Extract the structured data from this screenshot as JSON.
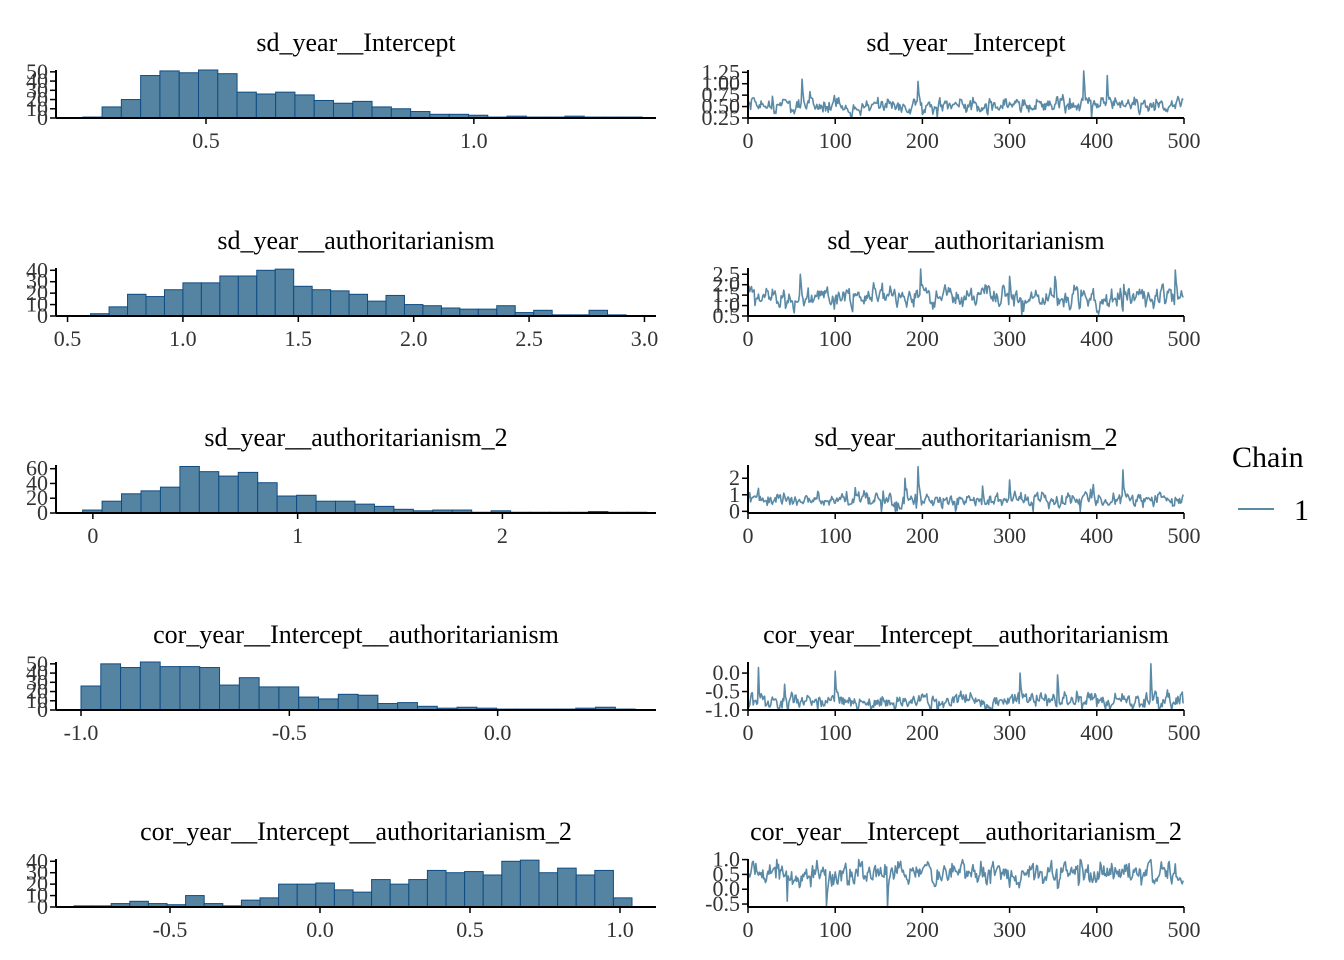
{
  "colors": {
    "bar_fill": "#5584a2",
    "bar_stroke": "#0f4c84",
    "trace": "#5b8aa6",
    "axis": "#000000"
  },
  "legend": {
    "title": "Chain",
    "items": [
      {
        "label": "1"
      }
    ]
  },
  "chart_data": [
    {
      "type": "bar",
      "title": "sd_year__Intercept",
      "xlim": [
        0.22,
        1.34
      ],
      "xticks": [
        0.5,
        1.0
      ],
      "xtick_labels": [
        "0.5",
        "1.0"
      ],
      "ylim": [
        0,
        52
      ],
      "yticks": [
        0,
        10,
        20,
        30,
        40,
        50
      ],
      "ytick_labels": [
        "0",
        "10",
        "20",
        "30",
        "40",
        "50"
      ],
      "bin_width": 0.036,
      "bin_starts": [
        0.27,
        0.306,
        0.342,
        0.378,
        0.414,
        0.45,
        0.486,
        0.522,
        0.558,
        0.594,
        0.63,
        0.666,
        0.702,
        0.738,
        0.774,
        0.81,
        0.846,
        0.882,
        0.918,
        0.954,
        0.99,
        1.026,
        1.062,
        1.098,
        1.134,
        1.17,
        1.206,
        1.242,
        1.278
      ],
      "counts": [
        1,
        12,
        20,
        46,
        51,
        49,
        52,
        48,
        28,
        26,
        28,
        25,
        19,
        16,
        18,
        12,
        10,
        7,
        4,
        4,
        3,
        1,
        2,
        1,
        1,
        2,
        1,
        1,
        1
      ]
    },
    {
      "type": "line",
      "title": "sd_year__Intercept",
      "n": 500,
      "xlim": [
        0,
        500
      ],
      "xticks": [
        0,
        100,
        200,
        300,
        400,
        500
      ],
      "xtick_labels": [
        "0",
        "100",
        "200",
        "300",
        "400",
        "500"
      ],
      "ylim": [
        0.25,
        1.3
      ],
      "yticks": [
        0.25,
        0.5,
        0.75,
        1.0,
        1.25
      ],
      "ytick_labels": [
        "0.25",
        "0.50",
        "0.75",
        "1.00",
        "1.25"
      ],
      "trace_summary": {
        "center": 0.52,
        "spread": 0.13,
        "min": 0.27,
        "max": 1.3,
        "spikes": [
          [
            62,
            1.1
          ],
          [
            195,
            1.05
          ],
          [
            385,
            1.28
          ],
          [
            412,
            1.18
          ]
        ]
      }
    },
    {
      "type": "bar",
      "title": "sd_year__authoritarianism",
      "xlim": [
        0.45,
        3.05
      ],
      "xticks": [
        0.5,
        1.0,
        1.5,
        2.0,
        2.5,
        3.0
      ],
      "xtick_labels": [
        "0.5",
        "1.0",
        "1.5",
        "2.0",
        "2.5",
        "3.0"
      ],
      "ylim": [
        0,
        42
      ],
      "yticks": [
        0,
        10,
        20,
        30,
        40
      ],
      "ytick_labels": [
        "0",
        "10",
        "20",
        "30",
        "40"
      ],
      "bin_width": 0.08,
      "bin_starts": [
        0.6,
        0.68,
        0.76,
        0.84,
        0.92,
        1.0,
        1.08,
        1.16,
        1.24,
        1.32,
        1.4,
        1.48,
        1.56,
        1.64,
        1.72,
        1.8,
        1.88,
        1.96,
        2.04,
        2.12,
        2.2,
        2.28,
        2.36,
        2.44,
        2.52,
        2.6,
        2.68,
        2.76,
        2.84
      ],
      "counts": [
        2,
        8,
        19,
        17,
        23,
        29,
        29,
        35,
        35,
        40,
        41,
        26,
        23,
        22,
        19,
        13,
        18,
        10,
        9,
        7,
        6,
        6,
        9,
        3,
        5,
        1,
        1,
        5,
        1
      ]
    },
    {
      "type": "line",
      "title": "sd_year__authoritarianism",
      "n": 500,
      "xlim": [
        0,
        500
      ],
      "xticks": [
        0,
        100,
        200,
        300,
        400,
        500
      ],
      "xtick_labels": [
        "0",
        "100",
        "200",
        "300",
        "400",
        "500"
      ],
      "ylim": [
        0.5,
        2.8
      ],
      "yticks": [
        0.5,
        1.0,
        1.5,
        2.0,
        2.5
      ],
      "ytick_labels": [
        "0.5",
        "1.0",
        "1.5",
        "2.0",
        "2.5"
      ],
      "trace_summary": {
        "center": 1.4,
        "spread": 0.4,
        "min": 0.55,
        "max": 2.8,
        "spikes": [
          [
            198,
            2.75
          ],
          [
            490,
            2.7
          ],
          [
            60,
            2.5
          ],
          [
            300,
            2.4
          ]
        ]
      }
    },
    {
      "type": "bar",
      "title": "sd_year__authoritarianism_2",
      "xlim": [
        -0.18,
        2.75
      ],
      "xticks": [
        0,
        1,
        2
      ],
      "xtick_labels": [
        "0",
        "1",
        "2"
      ],
      "ylim": [
        0,
        65
      ],
      "yticks": [
        0,
        20,
        40,
        60
      ],
      "ytick_labels": [
        "0",
        "20",
        "40",
        "60"
      ],
      "bin_width": 0.095,
      "bin_starts": [
        -0.05,
        0.045,
        0.14,
        0.235,
        0.33,
        0.425,
        0.52,
        0.615,
        0.71,
        0.805,
        0.9,
        0.995,
        1.09,
        1.185,
        1.28,
        1.375,
        1.47,
        1.565,
        1.66,
        1.755,
        1.85,
        1.945,
        2.04,
        2.135,
        2.23,
        2.325,
        2.42,
        2.515,
        2.61
      ],
      "counts": [
        4,
        16,
        26,
        30,
        35,
        63,
        56,
        50,
        55,
        41,
        23,
        24,
        16,
        16,
        12,
        9,
        5,
        3,
        4,
        4,
        1,
        3,
        1,
        1,
        1,
        1,
        2,
        1,
        1
      ]
    },
    {
      "type": "line",
      "title": "sd_year__authoritarianism_2",
      "n": 500,
      "xlim": [
        0,
        500
      ],
      "xticks": [
        0,
        100,
        200,
        300,
        400,
        500
      ],
      "xtick_labels": [
        "0",
        "100",
        "200",
        "300",
        "400",
        "500"
      ],
      "ylim": [
        -0.1,
        2.8
      ],
      "yticks": [
        0,
        1,
        2
      ],
      "ytick_labels": [
        "0",
        "1",
        "2"
      ],
      "trace_summary": {
        "center": 0.7,
        "spread": 0.35,
        "min": 0.0,
        "max": 2.7,
        "spikes": [
          [
            195,
            2.7
          ],
          [
            430,
            2.5
          ],
          [
            180,
            2.0
          ],
          [
            300,
            1.9
          ]
        ]
      }
    },
    {
      "type": "bar",
      "title": "cor_year__Intercept__authoritarianism",
      "xlim": [
        -1.06,
        0.38
      ],
      "xticks": [
        -1.0,
        -0.5,
        0.0
      ],
      "xtick_labels": [
        "-1.0",
        "-0.5",
        "0.0"
      ],
      "ylim": [
        0,
        52
      ],
      "yticks": [
        0,
        10,
        20,
        30,
        40,
        50
      ],
      "ytick_labels": [
        "0",
        "10",
        "20",
        "30",
        "40",
        "50"
      ],
      "bin_width": 0.0475,
      "bin_starts": [
        -1.0,
        -0.9525,
        -0.905,
        -0.8575,
        -0.81,
        -0.7625,
        -0.715,
        -0.6675,
        -0.62,
        -0.5725,
        -0.525,
        -0.4775,
        -0.43,
        -0.3825,
        -0.335,
        -0.2875,
        -0.24,
        -0.1925,
        -0.145,
        -0.0975,
        -0.05,
        -0.0025,
        0.045,
        0.0925,
        0.14,
        0.1875,
        0.235,
        0.2825
      ],
      "counts": [
        26,
        50,
        46,
        52,
        47,
        47,
        46,
        27,
        35,
        25,
        25,
        14,
        12,
        17,
        16,
        7,
        8,
        4,
        2,
        3,
        2,
        1,
        1,
        1,
        1,
        2,
        3,
        1
      ]
    },
    {
      "type": "line",
      "title": "cor_year__Intercept__authoritarianism",
      "n": 500,
      "xlim": [
        0,
        500
      ],
      "xticks": [
        0,
        100,
        200,
        300,
        400,
        500
      ],
      "xtick_labels": [
        "0",
        "100",
        "200",
        "300",
        "400",
        "500"
      ],
      "ylim": [
        -1.0,
        0.3
      ],
      "yticks": [
        -1.0,
        -0.5,
        0.0
      ],
      "ytick_labels": [
        "-1.0",
        "-0.5",
        "0.0"
      ],
      "trace_summary": {
        "center": -0.75,
        "spread": 0.18,
        "min": -1.0,
        "max": 0.25,
        "spikes": [
          [
            12,
            0.15
          ],
          [
            100,
            0.05
          ],
          [
            312,
            0.0
          ],
          [
            462,
            0.25
          ],
          [
            355,
            -0.05
          ]
        ]
      }
    },
    {
      "type": "bar",
      "title": "cor_year__Intercept__authoritarianism_2",
      "xlim": [
        -0.88,
        1.12
      ],
      "xticks": [
        -0.5,
        0.0,
        0.5,
        1.0
      ],
      "xtick_labels": [
        "-0.5",
        "0.0",
        "0.5",
        "1.0"
      ],
      "ylim": [
        0,
        42
      ],
      "yticks": [
        0,
        10,
        20,
        30,
        40
      ],
      "ytick_labels": [
        "0",
        "10",
        "20",
        "30",
        "40"
      ],
      "bin_width": 0.062,
      "bin_starts": [
        -0.82,
        -0.758,
        -0.696,
        -0.634,
        -0.572,
        -0.51,
        -0.448,
        -0.386,
        -0.324,
        -0.262,
        -0.2,
        -0.138,
        -0.076,
        -0.014,
        0.048,
        0.11,
        0.172,
        0.234,
        0.296,
        0.358,
        0.42,
        0.482,
        0.544,
        0.606,
        0.668,
        0.73,
        0.792,
        0.854,
        0.916,
        0.978
      ],
      "counts": [
        1,
        1,
        3,
        5,
        3,
        2,
        10,
        3,
        1,
        6,
        8,
        20,
        20,
        21,
        15,
        13,
        24,
        20,
        24,
        32,
        30,
        31,
        28,
        40,
        41,
        30,
        34,
        28,
        32,
        8
      ]
    },
    {
      "type": "line",
      "title": "cor_year__Intercept__authoritarianism_2",
      "n": 500,
      "xlim": [
        0,
        500
      ],
      "xticks": [
        0,
        100,
        200,
        300,
        400,
        500
      ],
      "xtick_labels": [
        "0",
        "100",
        "200",
        "300",
        "400",
        "500"
      ],
      "ylim": [
        -0.6,
        1.02
      ],
      "yticks": [
        -0.5,
        0.0,
        0.5,
        1.0
      ],
      "ytick_labels": [
        "-0.5",
        "0.0",
        "0.5",
        "1.0"
      ],
      "trace_summary": {
        "center": 0.55,
        "spread": 0.3,
        "min": -0.6,
        "max": 1.0,
        "spikes": [
          [
            90,
            -0.55
          ],
          [
            160,
            -0.6
          ],
          [
            45,
            -0.4
          ]
        ]
      }
    }
  ]
}
